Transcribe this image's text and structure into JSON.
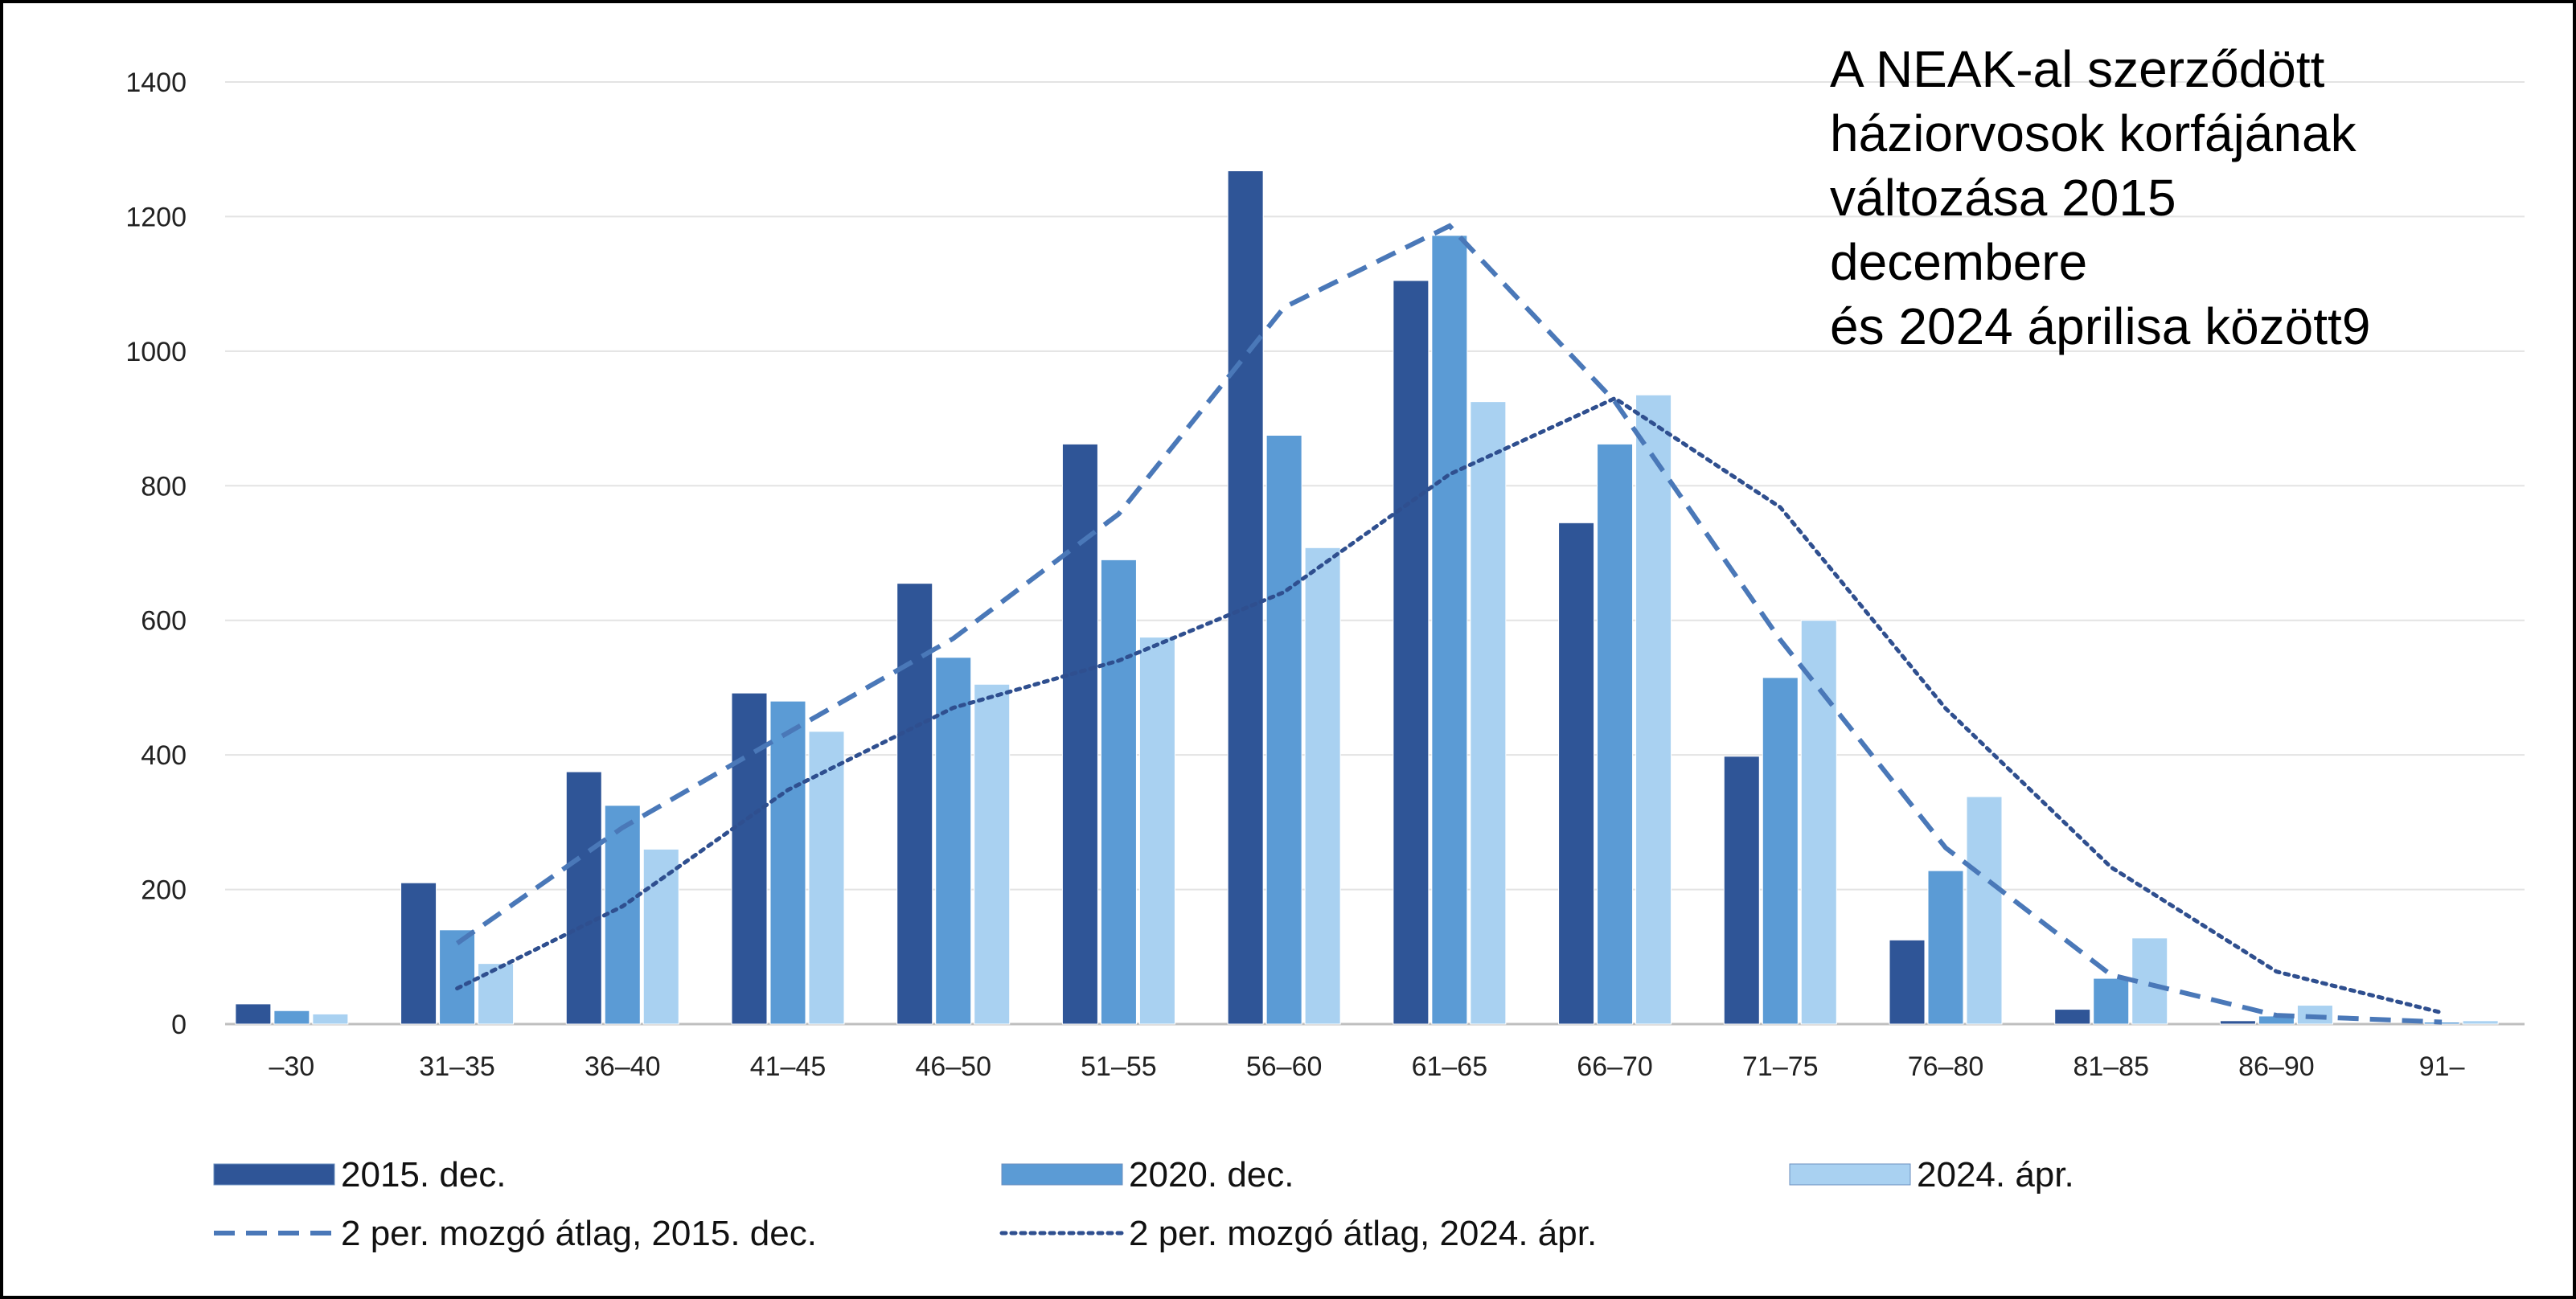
{
  "chart_data": {
    "type": "bar",
    "title_lines": [
      "A NEAK-al szerződött",
      "háziorvosok korfájának",
      "változása 2015",
      "decembere",
      "és 2024 áprilisa között9"
    ],
    "categories": [
      "–30",
      "31–35",
      "36–40",
      "41–45",
      "46–50",
      "51–55",
      "56–60",
      "61–65",
      "66–70",
      "71–75",
      "76–80",
      "81–85",
      "86–90",
      "91–"
    ],
    "ylim": [
      0,
      1400
    ],
    "yticks": [
      0,
      200,
      400,
      600,
      800,
      1000,
      1200,
      1400
    ],
    "grid": true,
    "series": [
      {
        "name": "2015. dec.",
        "color": "#2f5597",
        "values": [
          30,
          210,
          375,
          492,
          655,
          862,
          1268,
          1105,
          745,
          398,
          125,
          22,
          5,
          0
        ]
      },
      {
        "name": "2020. dec.",
        "color": "#5b9bd5",
        "values": [
          20,
          140,
          325,
          480,
          545,
          690,
          875,
          1172,
          862,
          515,
          228,
          68,
          12,
          3
        ]
      },
      {
        "name": "2024. ápr.",
        "color": "#a9d1f1",
        "values": [
          15,
          90,
          260,
          435,
          505,
          575,
          708,
          925,
          935,
          600,
          338,
          128,
          28,
          5
        ]
      }
    ],
    "trendlines": [
      {
        "name": "2 per. mozgó átlag, 2015. dec.",
        "style": "dashed",
        "color": "#4a78b8",
        "from_index": 1,
        "values": [
          120,
          292,
          433,
          573,
          758,
          1065,
          1186,
          925,
          571,
          262,
          73,
          13,
          3
        ]
      },
      {
        "name": "2 per. mozgó átlag, 2024. ápr.",
        "style": "dotted",
        "color": "#2f4f8f",
        "from_index": 1,
        "values": [
          53,
          175,
          348,
          470,
          540,
          642,
          817,
          930,
          768,
          469,
          233,
          78,
          17
        ]
      }
    ],
    "legend_position": "bottom"
  }
}
